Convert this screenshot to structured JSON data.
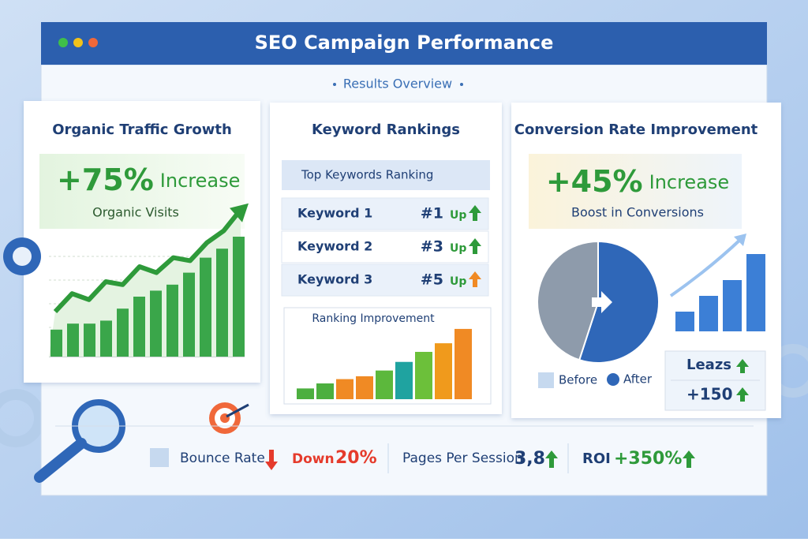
{
  "header": {
    "title": "SEO Campaign Performance",
    "subtitle": "Results Overview"
  },
  "cards": [
    {
      "title": "Organic Traffic Growth",
      "stat": "+75%",
      "stat_label": "Increase",
      "caption": "Organic Visits",
      "chart": {
        "type": "bar",
        "values": [
          18,
          22,
          22,
          24,
          32,
          40,
          44,
          48,
          56,
          66,
          72,
          80
        ],
        "line_values": [
          30,
          42,
          38,
          50,
          48,
          60,
          56,
          66,
          64,
          76,
          84,
          98
        ],
        "ylim": [
          0,
          100
        ],
        "color": "#3aa64a",
        "line_color": "#2e9a3a"
      }
    },
    {
      "title": "Keyword Rankings",
      "list_header": "Top Keywords Ranking",
      "rows": [
        {
          "keyword": "Keyword 1",
          "rank": "#1",
          "trend": "Up"
        },
        {
          "keyword": "Keyword 2",
          "rank": "#3",
          "trend": "Up"
        },
        {
          "keyword": "Keyword 3",
          "rank": "#5",
          "trend": "Up"
        }
      ],
      "chart": {
        "type": "bar",
        "title": "Ranking Improvement",
        "values": [
          15,
          22,
          28,
          32,
          40,
          52,
          66,
          78,
          98
        ],
        "ylim": [
          0,
          110
        ],
        "colors": [
          "#4caf3f",
          "#4caf3f",
          "#f08a24",
          "#f08a24",
          "#5cb83c",
          "#1fa3a0",
          "#6cc03a",
          "#f09a1c",
          "#f08a24"
        ]
      }
    },
    {
      "title": "Conversion Rate Improvement",
      "stat": "+45%",
      "stat_label": "Increase",
      "caption": "Boost in Conversions",
      "pie": {
        "type": "pie",
        "labels": [
          "Before",
          "After"
        ],
        "values": [
          45,
          55
        ],
        "colors": [
          "#8e9bab",
          "#2f67b8"
        ]
      },
      "chart": {
        "type": "bar",
        "values": [
          25,
          45,
          65,
          98
        ],
        "ylim": [
          0,
          100
        ],
        "color": "#3c7fd6"
      },
      "metrics": [
        "Leazs",
        "+150"
      ]
    }
  ],
  "footer": {
    "bounce_label": "Bounce Rate",
    "bounce_trend": "Down",
    "bounce_value": "20%",
    "pages_label": "Pages Per Session",
    "pages_value": "3,8",
    "roi_label": "ROI",
    "roi_value": "+350%"
  }
}
